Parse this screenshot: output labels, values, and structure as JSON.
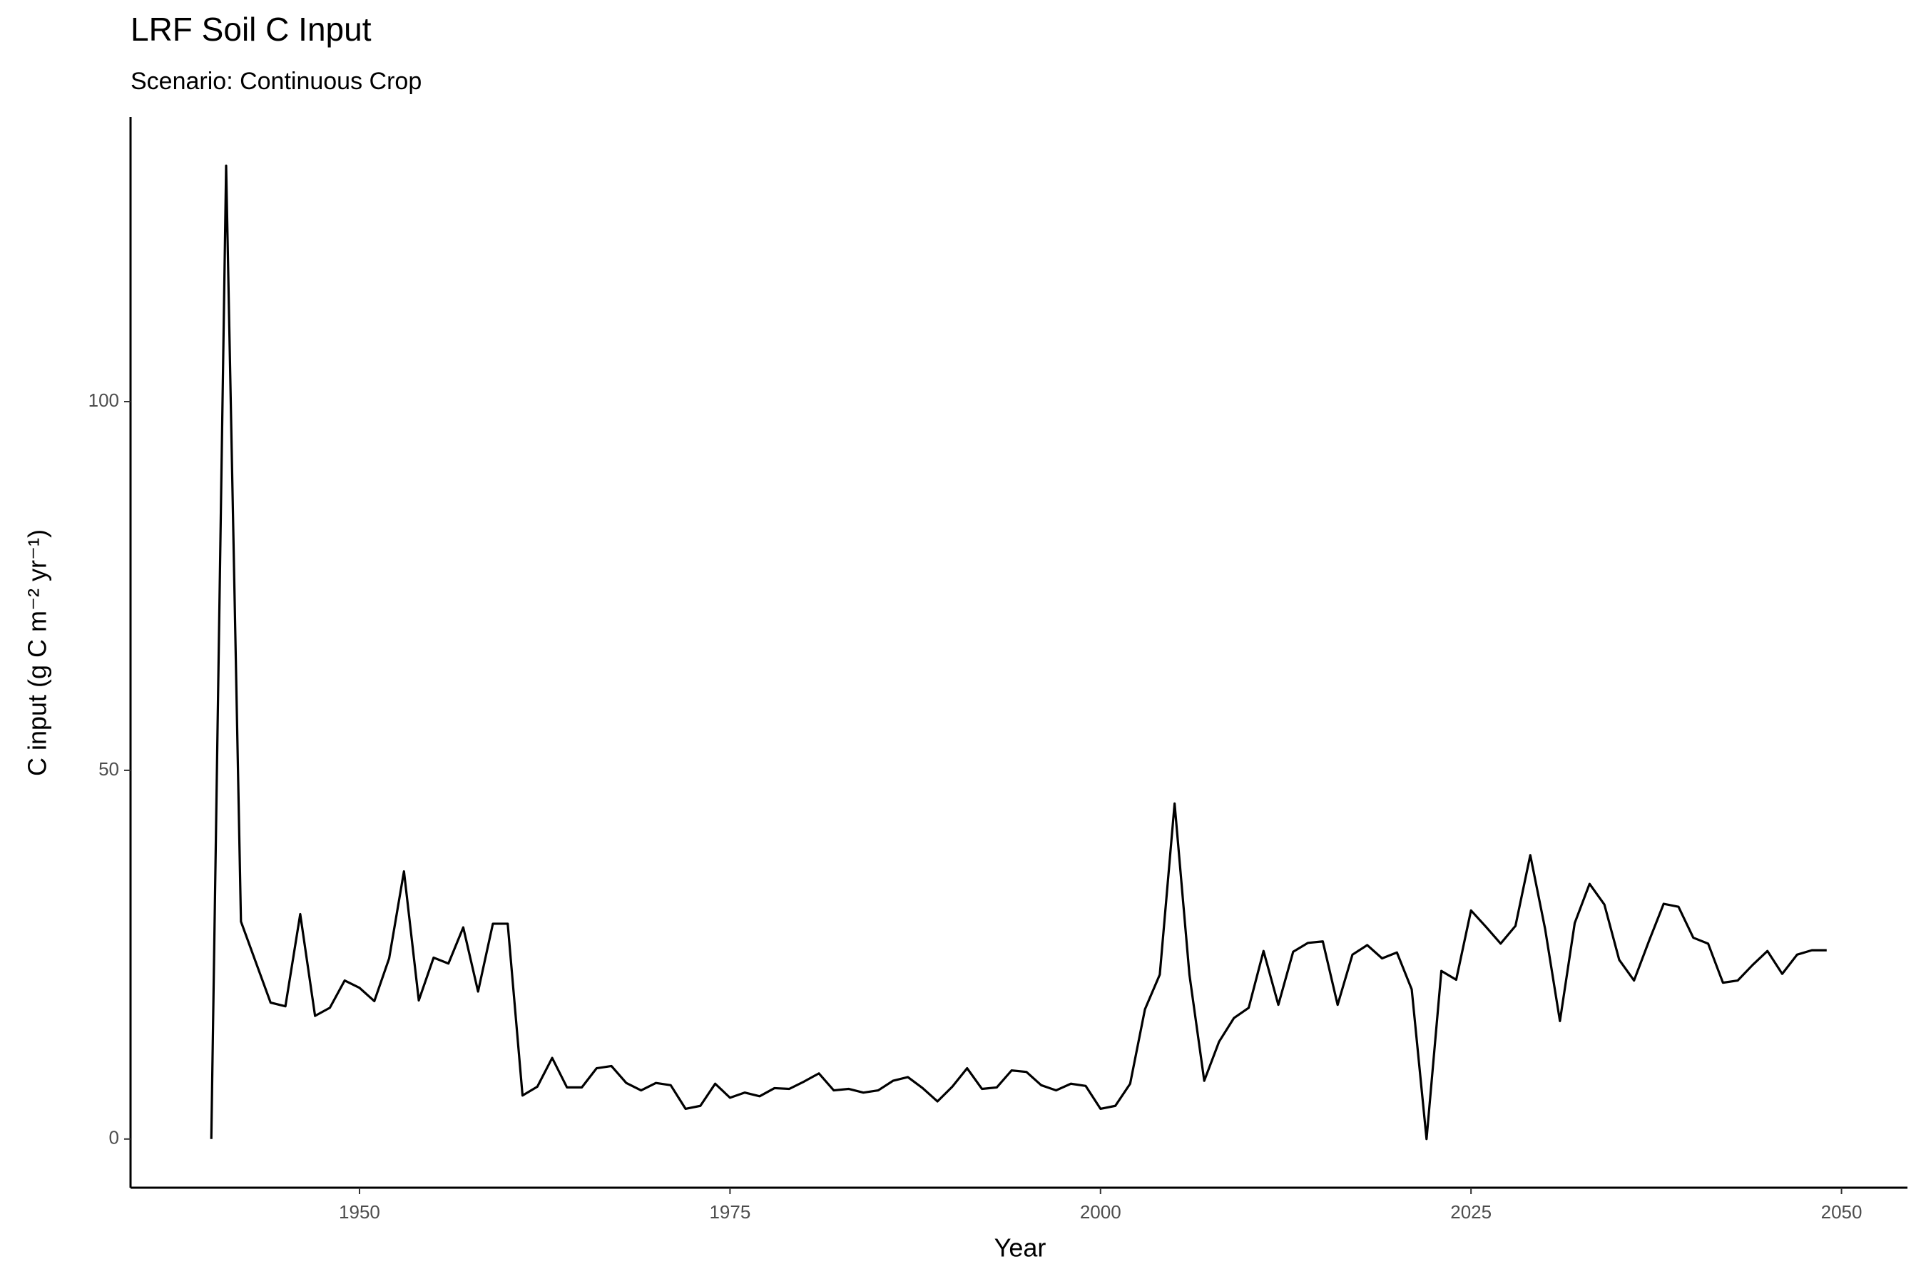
{
  "chart_data": {
    "type": "line",
    "title": "LRF Soil C Input",
    "subtitle": "Scenario: Continuous Crop",
    "x_label": "Year",
    "y_label": "C input (g C m⁻² yr⁻¹)",
    "x": [
      1940,
      1941,
      1942,
      1943,
      1944,
      1945,
      1946,
      1947,
      1948,
      1949,
      1950,
      1951,
      1952,
      1953,
      1954,
      1955,
      1956,
      1957,
      1958,
      1959,
      1960,
      1961,
      1962,
      1963,
      1964,
      1965,
      1966,
      1967,
      1968,
      1969,
      1970,
      1971,
      1972,
      1973,
      1974,
      1975,
      1976,
      1977,
      1978,
      1979,
      1980,
      1981,
      1982,
      1983,
      1984,
      1985,
      1986,
      1987,
      1988,
      1989,
      1990,
      1991,
      1992,
      1993,
      1994,
      1995,
      1996,
      1997,
      1998,
      1999,
      2000,
      2001,
      2002,
      2003,
      2004,
      2005,
      2006,
      2007,
      2008,
      2009,
      2010,
      2011,
      2012,
      2013,
      2014,
      2015,
      2016,
      2017,
      2018,
      2019,
      2020,
      2021,
      2022,
      2023,
      2024,
      2025,
      2026,
      2027,
      2028,
      2029,
      2030,
      2031,
      2032,
      2033,
      2034,
      2035,
      2036,
      2037,
      2038,
      2039,
      2040,
      2041,
      2042,
      2043,
      2044,
      2045,
      2046,
      2047,
      2048,
      2049
    ],
    "series": [
      {
        "name": "C input",
        "color": "#000000",
        "values": [
          0,
          132,
          29.5,
          24,
          18.5,
          18,
          30.5,
          16.7,
          17.8,
          21.5,
          20.5,
          18.7,
          24.5,
          36.3,
          18.8,
          24.6,
          23.8,
          28.7,
          20,
          29.2,
          29.2,
          5.9,
          7.1,
          11,
          7,
          7,
          9.6,
          9.9,
          7.6,
          6.6,
          7.6,
          7.3,
          4.1,
          4.5,
          7.5,
          5.6,
          6.3,
          5.8,
          6.9,
          6.8,
          7.8,
          8.9,
          6.6,
          6.8,
          6.3,
          6.6,
          7.9,
          8.4,
          6.9,
          5.1,
          7.1,
          9.6,
          6.8,
          7,
          9.3,
          9.1,
          7.3,
          6.6,
          7.5,
          7.2,
          4.1,
          4.5,
          7.5,
          17.6,
          22.3,
          45.5,
          22.3,
          7.9,
          13.2,
          16.4,
          17.8,
          25.5,
          18.2,
          25.4,
          26.6,
          26.8,
          18.2,
          25,
          26.3,
          24.5,
          25.3,
          20.3,
          0,
          22.8,
          21.6,
          31,
          28.8,
          26.5,
          28.9,
          38.5,
          28.5,
          16,
          29.3,
          34.6,
          31.8,
          24.3,
          21.5,
          26.8,
          31.9,
          31.5,
          27.3,
          26.5,
          21.2,
          21.5,
          23.6,
          25.5,
          22.4,
          25,
          25.6,
          25.6
        ]
      }
    ],
    "xlim": [
      1934.55,
      2054.45
    ],
    "xticks": [
      1950,
      1975,
      2000,
      2025,
      2050
    ],
    "ylim": [
      -6.6,
      138.6
    ],
    "yticks": [
      0,
      50,
      100
    ],
    "grid": false
  }
}
